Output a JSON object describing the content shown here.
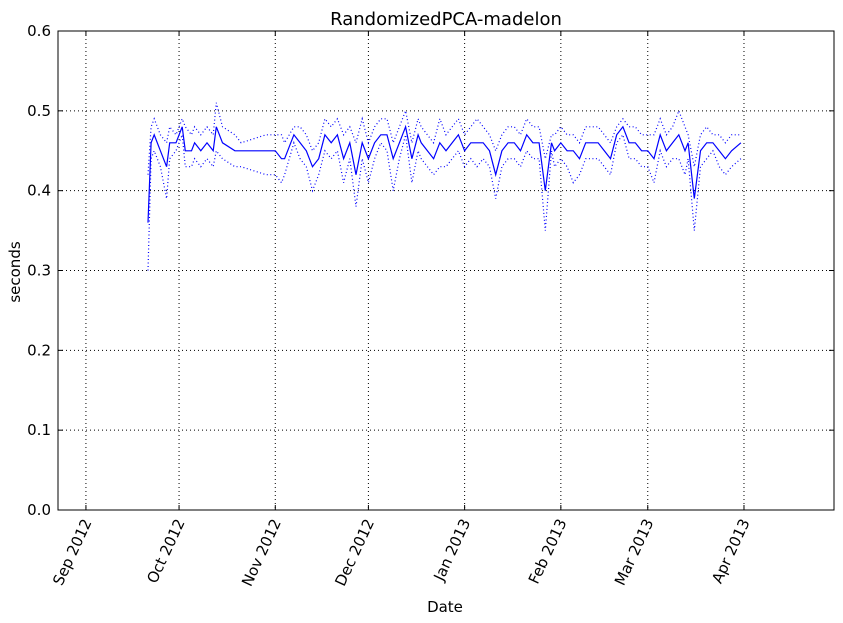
{
  "chart_data": {
    "type": "line",
    "title": "RandomizedPCA-madelon",
    "xlabel": "Date",
    "ylabel": "seconds",
    "ylim": [
      0.0,
      0.6
    ],
    "xlim": [
      "2012-08-23",
      "2013-04-30"
    ],
    "grid": true,
    "line_color": "#0000ff",
    "x_ticks": [
      {
        "date": "2012-09-01",
        "label": "Sep 2012"
      },
      {
        "date": "2012-10-01",
        "label": "Oct 2012"
      },
      {
        "date": "2012-11-01",
        "label": "Nov 2012"
      },
      {
        "date": "2012-12-01",
        "label": "Dec 2012"
      },
      {
        "date": "2013-01-01",
        "label": "Jan 2013"
      },
      {
        "date": "2013-02-01",
        "label": "Feb 2013"
      },
      {
        "date": "2013-03-01",
        "label": "Mar 2013"
      },
      {
        "date": "2013-04-01",
        "label": "Apr 2013"
      }
    ],
    "y_ticks": [
      {
        "value": 0.0,
        "label": "0.0"
      },
      {
        "value": 0.1,
        "label": "0.1"
      },
      {
        "value": 0.2,
        "label": "0.2"
      },
      {
        "value": 0.3,
        "label": "0.3"
      },
      {
        "value": 0.4,
        "label": "0.4"
      },
      {
        "value": 0.5,
        "label": "0.5"
      },
      {
        "value": 0.6,
        "label": "0.6"
      }
    ],
    "x": [
      "2012-09-21",
      "2012-09-22",
      "2012-09-23",
      "2012-09-25",
      "2012-09-27",
      "2012-09-28",
      "2012-09-30",
      "2012-10-02",
      "2012-10-03",
      "2012-10-05",
      "2012-10-06",
      "2012-10-08",
      "2012-10-10",
      "2012-10-12",
      "2012-10-13",
      "2012-10-15",
      "2012-10-19",
      "2012-10-21",
      "2012-10-29",
      "2012-11-01",
      "2012-11-03",
      "2012-11-04",
      "2012-11-07",
      "2012-11-09",
      "2012-11-11",
      "2012-11-13",
      "2012-11-15",
      "2012-11-17",
      "2012-11-19",
      "2012-11-21",
      "2012-11-23",
      "2012-11-25",
      "2012-11-27",
      "2012-11-29",
      "2012-12-01",
      "2012-12-03",
      "2012-12-05",
      "2012-12-07",
      "2012-12-09",
      "2012-12-11",
      "2012-12-13",
      "2012-12-15",
      "2012-12-17",
      "2012-12-18",
      "2012-12-20",
      "2012-12-22",
      "2012-12-24",
      "2012-12-26",
      "2012-12-28",
      "2012-12-30",
      "2013-01-01",
      "2013-01-03",
      "2013-01-05",
      "2013-01-07",
      "2013-01-09",
      "2013-01-11",
      "2013-01-13",
      "2013-01-15",
      "2013-01-17",
      "2013-01-19",
      "2013-01-21",
      "2013-01-23",
      "2013-01-25",
      "2013-01-27",
      "2013-01-29",
      "2013-01-30",
      "2013-02-01",
      "2013-02-03",
      "2013-02-05",
      "2013-02-07",
      "2013-02-09",
      "2013-02-11",
      "2013-02-13",
      "2013-02-15",
      "2013-02-17",
      "2013-02-19",
      "2013-02-21",
      "2013-02-23",
      "2013-02-25",
      "2013-02-27",
      "2013-03-01",
      "2013-03-03",
      "2013-03-05",
      "2013-03-07",
      "2013-03-09",
      "2013-03-11",
      "2013-03-13",
      "2013-03-14",
      "2013-03-16",
      "2013-03-18",
      "2013-03-20",
      "2013-03-22",
      "2013-03-24",
      "2013-03-26",
      "2013-03-28",
      "2013-03-31"
    ],
    "series": [
      {
        "style": "solid",
        "values": [
          0.36,
          0.46,
          0.47,
          0.45,
          0.43,
          0.46,
          0.46,
          0.48,
          0.45,
          0.45,
          0.46,
          0.45,
          0.46,
          0.45,
          0.48,
          0.46,
          0.45,
          0.45,
          0.45,
          0.45,
          0.44,
          0.44,
          0.47,
          0.46,
          0.45,
          0.43,
          0.44,
          0.47,
          0.46,
          0.47,
          0.44,
          0.46,
          0.42,
          0.46,
          0.44,
          0.46,
          0.47,
          0.47,
          0.44,
          0.46,
          0.48,
          0.44,
          0.47,
          0.46,
          0.45,
          0.44,
          0.46,
          0.45,
          0.46,
          0.47,
          0.45,
          0.46,
          0.46,
          0.46,
          0.45,
          0.42,
          0.45,
          0.46,
          0.46,
          0.45,
          0.47,
          0.46,
          0.46,
          0.4,
          0.46,
          0.45,
          0.46,
          0.45,
          0.45,
          0.44,
          0.46,
          0.46,
          0.46,
          0.45,
          0.44,
          0.47,
          0.48,
          0.46,
          0.46,
          0.45,
          0.45,
          0.44,
          0.47,
          0.45,
          0.46,
          0.47,
          0.45,
          0.46,
          0.39,
          0.45,
          0.46,
          0.46,
          0.45,
          0.44,
          0.45,
          0.46
        ]
      },
      {
        "style": "dotted",
        "values": [
          0.42,
          0.48,
          0.49,
          0.47,
          0.46,
          0.48,
          0.47,
          0.49,
          0.48,
          0.47,
          0.48,
          0.47,
          0.48,
          0.47,
          0.51,
          0.48,
          0.47,
          0.46,
          0.47,
          0.47,
          0.47,
          0.46,
          0.48,
          0.48,
          0.47,
          0.45,
          0.46,
          0.49,
          0.48,
          0.49,
          0.47,
          0.48,
          0.46,
          0.49,
          0.46,
          0.48,
          0.49,
          0.49,
          0.46,
          0.48,
          0.5,
          0.46,
          0.49,
          0.48,
          0.47,
          0.46,
          0.49,
          0.47,
          0.48,
          0.49,
          0.47,
          0.48,
          0.49,
          0.48,
          0.47,
          0.45,
          0.47,
          0.48,
          0.48,
          0.47,
          0.49,
          0.48,
          0.48,
          0.44,
          0.47,
          0.47,
          0.48,
          0.47,
          0.47,
          0.46,
          0.48,
          0.48,
          0.48,
          0.47,
          0.46,
          0.48,
          0.49,
          0.48,
          0.48,
          0.47,
          0.47,
          0.47,
          0.49,
          0.47,
          0.48,
          0.5,
          0.48,
          0.47,
          0.43,
          0.47,
          0.48,
          0.47,
          0.47,
          0.46,
          0.47,
          0.47
        ]
      },
      {
        "style": "dotted",
        "values": [
          0.3,
          0.44,
          0.45,
          0.43,
          0.39,
          0.44,
          0.45,
          0.47,
          0.43,
          0.43,
          0.44,
          0.43,
          0.44,
          0.43,
          0.45,
          0.44,
          0.43,
          0.43,
          0.42,
          0.42,
          0.41,
          0.42,
          0.46,
          0.44,
          0.43,
          0.4,
          0.42,
          0.45,
          0.44,
          0.45,
          0.41,
          0.44,
          0.38,
          0.44,
          0.41,
          0.44,
          0.46,
          0.45,
          0.4,
          0.44,
          0.47,
          0.41,
          0.45,
          0.44,
          0.43,
          0.42,
          0.43,
          0.43,
          0.44,
          0.45,
          0.43,
          0.44,
          0.43,
          0.44,
          0.43,
          0.39,
          0.43,
          0.44,
          0.44,
          0.43,
          0.45,
          0.44,
          0.44,
          0.35,
          0.45,
          0.43,
          0.44,
          0.43,
          0.41,
          0.42,
          0.44,
          0.44,
          0.44,
          0.43,
          0.42,
          0.46,
          0.47,
          0.44,
          0.44,
          0.43,
          0.43,
          0.41,
          0.45,
          0.43,
          0.44,
          0.44,
          0.42,
          0.44,
          0.35,
          0.43,
          0.44,
          0.45,
          0.43,
          0.42,
          0.43,
          0.44
        ]
      }
    ]
  }
}
